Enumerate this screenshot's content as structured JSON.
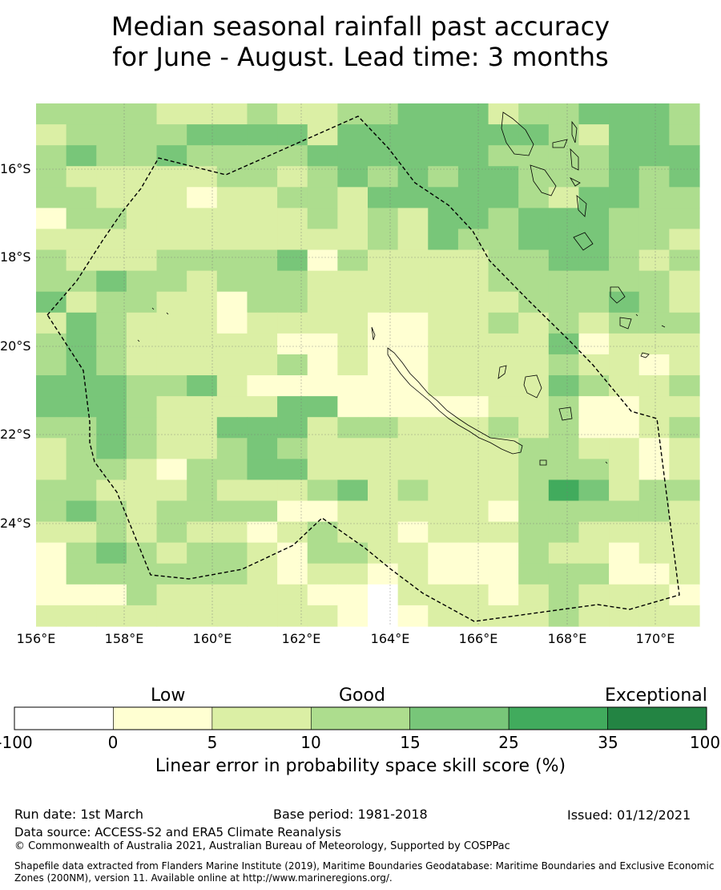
{
  "title": {
    "line1": "Median seasonal rainfall past accuracy",
    "line2": "for June - August. Lead time: 3 months"
  },
  "map": {
    "lat_labels": [
      "16°S",
      "18°S",
      "20°S",
      "22°S",
      "24°S"
    ],
    "lon_labels": [
      "156°E",
      "158°E",
      "160°E",
      "162°E",
      "164°E",
      "166°E",
      "168°E",
      "170°E"
    ],
    "category_colors": [
      "#ffffff",
      "#ffffd2",
      "#dbefa5",
      "#addd8e",
      "#78c679",
      "#41ab5d",
      "#238443"
    ],
    "boundary_color": "#000000",
    "grid_rows": [
      "3333222322334442334443",
      "2333344442444444432443",
      "3433433334444443333444",
      "3222223323434344333434",
      "3322212233244444324433",
      "1332222223232443444333",
      "2222222222232433444332",
      "3222333341322223344323",
      "3343323332222223333332",
      "4233221332222222333432",
      "2432221222211223232333",
      "3432222211211222241222",
      "3432222231211222232212",
      "4443342111111222243223",
      "4443222244111112231122",
      "3343224442332223231123",
      "2343223432222222332212",
      "2332133442222222333212",
      "3322232223423222354233",
      "3432333311222221333332",
      "2232322123221222332222",
      "1343233213322111322122",
      "1333333212212111333112",
      "1113222221102221232221",
      "2222222222101222232222"
    ]
  },
  "colorbar": {
    "categories": [
      "Low",
      "Good",
      "Exceptional"
    ],
    "ticks": [
      "-100",
      "0",
      "5",
      "10",
      "15",
      "25",
      "35",
      "100"
    ],
    "caption": "Linear error in probability space skill score (%)"
  },
  "footer": {
    "run_date": "Run date: 1st March",
    "base_period": "Base period: 1981-2018",
    "issued": "Issued: 01/12/2021",
    "data_source": "Data source: ACCESS-S2 and ERA5 Climate Reanalysis",
    "copyright": "© Commonwealth of Australia 2021, Australian Bureau of Meteorology, Supported by COSPPac",
    "shapefile": "Shapefile data extracted from Flanders Marine Institute (2019), Maritime Boundaries Geodatabase: Maritime Boundaries and Exclusive Economic Zones (200NM), version 11. Available online at http://www.marineregions.org/."
  }
}
